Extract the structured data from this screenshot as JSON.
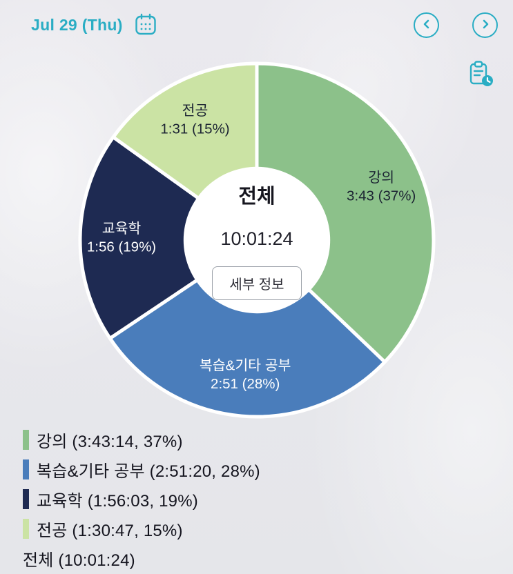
{
  "header": {
    "date_label": "Jul 29 (Thu)",
    "accent_color": "#2aadc4"
  },
  "icons": {
    "calendar_icon": "date-picker calendar glyph",
    "chevron_left_icon": "‹",
    "chevron_right_icon": "›",
    "report_clock_icon": "clipboard with clock badge"
  },
  "center": {
    "title": "전체",
    "total_time": "10:01:24",
    "detail_button_label": "세부 정보"
  },
  "chart_data": {
    "type": "pie",
    "subtype": "donut",
    "title": "전체",
    "total_time_label": "10:01:24",
    "total_seconds": 36084,
    "start_angle_deg": -90,
    "direction": "clockwise",
    "donut_hole_ratio": 0.415,
    "segments": [
      {
        "name": "강의",
        "time": "3:43:14",
        "time_short": "3:43",
        "percent": 37,
        "seconds": 13394,
        "color": "#8cc18a",
        "label_color": "#1c2433"
      },
      {
        "name": "복습&기타 공부",
        "time": "2:51:20",
        "time_short": "2:51",
        "percent": 28,
        "seconds": 10280,
        "color": "#4a7dbb",
        "label_color": "#ffffff"
      },
      {
        "name": "교육학",
        "time": "1:56:03",
        "time_short": "1:56",
        "percent": 19,
        "seconds": 6963,
        "color": "#1e2a52",
        "label_color": "#ffffff"
      },
      {
        "name": "전공",
        "time": "1:30:47",
        "time_short": "1:31",
        "percent": 15,
        "seconds": 5447,
        "color": "#cbe3a4",
        "label_color": "#1c2433"
      }
    ]
  },
  "legend": {
    "items": [
      {
        "label": "강의 (3:43:14, 37%)",
        "color": "#8cc18a"
      },
      {
        "label": "복습&기타 공부 (2:51:20, 28%)",
        "color": "#4a7dbb"
      },
      {
        "label": "교육학 (1:56:03, 19%)",
        "color": "#1e2a52"
      },
      {
        "label": "전공 (1:30:47, 15%)",
        "color": "#cbe3a4"
      },
      {
        "label": "전체 (10:01:24)",
        "color": null
      }
    ]
  }
}
